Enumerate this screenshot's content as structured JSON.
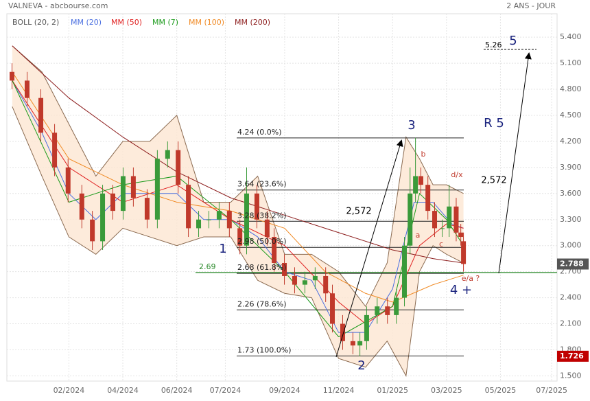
{
  "chart_data": {
    "type": "candlestick",
    "title": "VALNEVA - abcbourse.com",
    "period": "2 ANS - JOUR",
    "xlim": [
      -1.3,
      19.1
    ],
    "ylim": [
      1.44,
      5.67
    ],
    "grid": true,
    "xticks": [
      {
        "value": 1,
        "label": "02/2024"
      },
      {
        "value": 3,
        "label": "04/2024"
      },
      {
        "value": 5,
        "label": "06/2024"
      },
      {
        "value": 6.8,
        "label": "07/2024"
      },
      {
        "value": 9,
        "label": "09/2024"
      },
      {
        "value": 11,
        "label": "11/2024"
      },
      {
        "value": 13,
        "label": "01/2025"
      },
      {
        "value": 15,
        "label": "03/2025"
      },
      {
        "value": 17,
        "label": "05/2025"
      },
      {
        "value": 18.9,
        "label": "07/2025"
      }
    ],
    "yticks": [
      {
        "value": 1.5,
        "label": "1.500"
      },
      {
        "value": 1.8,
        "label": "1.800"
      },
      {
        "value": 2.1,
        "label": "2.100"
      },
      {
        "value": 2.4,
        "label": "2.400"
      },
      {
        "value": 2.7,
        "label": "2.700"
      },
      {
        "value": 3.0,
        "label": "3.000"
      },
      {
        "value": 3.3,
        "label": "3.300"
      },
      {
        "value": 3.6,
        "label": "3.600"
      },
      {
        "value": 3.9,
        "label": "3.900"
      },
      {
        "value": 4.2,
        "label": "4.200"
      },
      {
        "value": 4.5,
        "label": "4.500"
      },
      {
        "value": 4.8,
        "label": "4.800"
      },
      {
        "value": 5.1,
        "label": "5.100"
      },
      {
        "value": 5.4,
        "label": "5.400"
      }
    ],
    "candles": {
      "up_color": "#3a9a3a",
      "down_color": "#c0392b",
      "x": [
        -1.11,
        -0.55,
        -0.04,
        0.47,
        0.97,
        1.48,
        1.87,
        2.25,
        2.63,
        3.01,
        3.39,
        3.9,
        4.28,
        4.66,
        5.05,
        5.43,
        5.81,
        6.19,
        6.57,
        6.95,
        7.34,
        7.59,
        7.97,
        8.35,
        8.61,
        8.99,
        9.37,
        9.75,
        10.13,
        10.52,
        10.77,
        11.15,
        11.53,
        11.79,
        12.04,
        12.43,
        12.81,
        13.14,
        13.44,
        13.65,
        13.85,
        14.05,
        14.31,
        14.56,
        14.84,
        15.1,
        15.36,
        15.53,
        15.63
      ],
      "open": [
        5.0,
        4.9,
        4.7,
        4.3,
        3.9,
        3.6,
        3.3,
        3.05,
        3.6,
        3.4,
        3.8,
        3.55,
        3.3,
        4.0,
        4.1,
        3.7,
        3.2,
        3.3,
        3.3,
        3.4,
        3.2,
        3.0,
        3.6,
        3.3,
        3.1,
        2.8,
        2.65,
        2.55,
        2.6,
        2.65,
        2.45,
        2.1,
        1.9,
        1.85,
        1.9,
        2.2,
        2.3,
        2.2,
        2.4,
        3.0,
        3.6,
        3.8,
        3.7,
        3.4,
        3.2,
        3.2,
        3.45,
        3.15,
        3.05
      ],
      "high": [
        5.1,
        5.0,
        4.8,
        4.4,
        4.0,
        3.7,
        3.4,
        3.7,
        3.7,
        3.9,
        3.9,
        3.65,
        4.1,
        4.2,
        4.2,
        3.8,
        3.4,
        3.4,
        3.5,
        3.5,
        3.3,
        3.9,
        3.7,
        3.4,
        3.2,
        2.9,
        2.75,
        2.7,
        2.75,
        2.75,
        2.55,
        2.2,
        2.0,
        2.0,
        2.3,
        2.4,
        2.4,
        2.5,
        3.1,
        3.9,
        4.24,
        3.9,
        3.8,
        3.5,
        3.3,
        3.7,
        3.55,
        3.25,
        3.15
      ],
      "low": [
        4.8,
        4.6,
        4.2,
        3.8,
        3.5,
        3.2,
        2.95,
        2.95,
        3.3,
        3.3,
        3.45,
        3.2,
        3.2,
        3.9,
        3.6,
        3.1,
        3.1,
        3.2,
        3.2,
        3.1,
        2.9,
        2.9,
        3.2,
        3.0,
        2.7,
        2.55,
        2.45,
        2.45,
        2.5,
        2.35,
        2.0,
        1.8,
        1.75,
        1.726,
        1.8,
        2.1,
        2.1,
        2.1,
        2.3,
        2.9,
        3.5,
        3.6,
        3.3,
        3.1,
        3.1,
        3.1,
        3.05,
        3.0,
        2.7
      ],
      "close": [
        4.9,
        4.7,
        4.3,
        3.9,
        3.6,
        3.3,
        3.05,
        3.6,
        3.4,
        3.8,
        3.55,
        3.3,
        4.0,
        4.1,
        3.7,
        3.2,
        3.3,
        3.3,
        3.4,
        3.2,
        3.0,
        3.6,
        3.3,
        3.1,
        2.8,
        2.65,
        2.55,
        2.6,
        2.65,
        2.45,
        2.1,
        1.9,
        1.85,
        1.9,
        2.2,
        2.3,
        2.2,
        2.4,
        3.0,
        3.6,
        3.8,
        3.7,
        3.4,
        3.2,
        3.2,
        3.45,
        3.15,
        3.1,
        2.788
      ]
    },
    "bollinger": {
      "name": "BOLL (20, 2)",
      "color": "#8a6a50",
      "fill": "#fde6d2",
      "x": [
        -1.1,
        0,
        1,
        2,
        3,
        4,
        5,
        6,
        7,
        8,
        9,
        10,
        11,
        12,
        12.8,
        13.5,
        14,
        14.5,
        15,
        15.63
      ],
      "upper": [
        5.3,
        5.0,
        4.4,
        3.8,
        4.2,
        4.2,
        4.5,
        3.5,
        3.5,
        3.8,
        2.9,
        2.9,
        2.7,
        2.3,
        2.8,
        4.25,
        4.0,
        3.7,
        3.7,
        3.6
      ],
      "lower": [
        4.6,
        3.8,
        3.1,
        2.9,
        3.2,
        3.1,
        3.0,
        3.1,
        3.1,
        2.6,
        2.45,
        2.4,
        1.7,
        1.6,
        1.9,
        1.5,
        2.7,
        3.0,
        2.9,
        2.8
      ]
    },
    "series": [
      {
        "name": "MM (20)",
        "color": "#4a6fe0",
        "x": [
          -1.1,
          0,
          1,
          2,
          3,
          4,
          5,
          6,
          7,
          8,
          9,
          10,
          11,
          12,
          13,
          13.8,
          14.5,
          15.2,
          15.63
        ],
        "values": [
          4.9,
          4.3,
          3.6,
          3.3,
          3.6,
          3.6,
          3.6,
          3.3,
          3.3,
          3.1,
          2.7,
          2.6,
          2.0,
          2.0,
          2.5,
          3.5,
          3.5,
          3.25,
          3.2
        ]
      },
      {
        "name": "MM (50)",
        "color": "#e02020",
        "x": [
          -1.1,
          1,
          3,
          5,
          7,
          9,
          11,
          12,
          13,
          14,
          15,
          15.63
        ],
        "values": [
          4.9,
          3.9,
          3.5,
          3.7,
          3.3,
          3.0,
          2.35,
          2.1,
          2.3,
          3.0,
          3.25,
          3.2
        ]
      },
      {
        "name": "MM (7)",
        "color": "#1a9a1a",
        "x": [
          -1.1,
          1,
          3,
          5,
          7,
          9,
          11,
          13,
          14,
          15,
          15.63
        ],
        "values": [
          4.9,
          3.5,
          3.7,
          3.8,
          3.3,
          2.7,
          1.95,
          2.3,
          3.6,
          3.3,
          3.0
        ]
      },
      {
        "name": "MM (100)",
        "color": "#f08a24",
        "x": [
          -1.1,
          1,
          3,
          5,
          7,
          9,
          10.5,
          12,
          13,
          14.5,
          15.63
        ],
        "values": [
          5.0,
          4.0,
          3.7,
          3.5,
          3.4,
          3.2,
          2.7,
          2.45,
          2.35,
          2.55,
          2.66
        ]
      },
      {
        "name": "MM (200)",
        "color": "#8b1a1a",
        "x": [
          -1.1,
          1,
          3,
          5,
          7,
          9,
          11,
          13,
          14.5,
          15.63
        ],
        "values": [
          5.3,
          4.7,
          4.25,
          3.85,
          3.55,
          3.35,
          3.15,
          2.95,
          2.85,
          2.8
        ]
      }
    ],
    "fib_levels": [
      {
        "value": 4.24,
        "label": "4.24  (0.0%)"
      },
      {
        "value": 3.64,
        "label": "3.64  (23.6%)"
      },
      {
        "value": 3.28,
        "label": "3.28  (38.2%)"
      },
      {
        "value": 2.98,
        "label": "2.98  (50.0%)"
      },
      {
        "value": 2.68,
        "label": "2.68  (61.8%)"
      },
      {
        "value": 2.26,
        "label": "2.26  (78.6%)"
      },
      {
        "value": 1.73,
        "label": "1.73  (100.0%)"
      }
    ],
    "support": {
      "value": 2.69,
      "label": "2.69",
      "color": "#2a8a2a"
    },
    "target": {
      "value": 5.26,
      "label": "5.26"
    },
    "annotations": [
      "1",
      "2",
      "3",
      "4 +",
      "5",
      "R 5",
      "2,572",
      "2,572",
      "a",
      "b",
      "c",
      "d/x",
      "e/a ?"
    ]
  }
}
